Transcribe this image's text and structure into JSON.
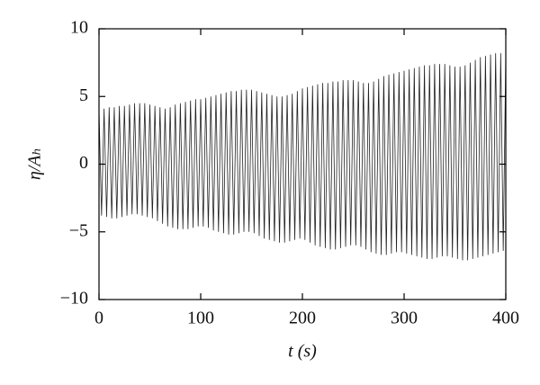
{
  "chart_data": {
    "type": "line",
    "xlabel": "t (s)",
    "ylabel": "η/Aₕ",
    "xlim": [
      0,
      400
    ],
    "xticks": [
      0,
      100,
      200,
      300,
      400
    ],
    "ylim": [
      -10,
      10
    ],
    "yticks": [
      {
        "value": -10,
        "label": "−10"
      },
      {
        "value": -5,
        "label": "−5"
      },
      0,
      5,
      10
    ],
    "x": [
      0,
      2.5,
      5,
      7.5,
      10,
      12.5,
      15,
      17.5,
      20,
      22.5,
      25,
      27.5,
      30,
      32.5,
      35,
      37.5,
      40,
      42.5,
      45,
      47.5,
      50,
      52.5,
      55,
      57.5,
      60,
      62.5,
      65,
      67.5,
      70,
      72.5,
      75,
      77.5,
      80,
      82.5,
      85,
      87.5,
      90,
      92.5,
      95,
      97.5,
      100,
      102.5,
      105,
      107.5,
      110,
      112.5,
      115,
      117.5,
      120,
      122.5,
      125,
      127.5,
      130,
      132.5,
      135,
      137.5,
      140,
      142.5,
      145,
      147.5,
      150,
      152.5,
      155,
      157.5,
      160,
      162.5,
      165,
      167.5,
      170,
      172.5,
      175,
      177.5,
      180,
      182.5,
      185,
      187.5,
      190,
      192.5,
      195,
      197.5,
      200,
      202.5,
      205,
      207.5,
      210,
      212.5,
      215,
      217.5,
      220,
      222.5,
      225,
      227.5,
      230,
      232.5,
      235,
      237.5,
      240,
      242.5,
      245,
      247.5,
      250,
      252.5,
      255,
      257.5,
      260,
      262.5,
      265,
      267.5,
      270,
      272.5,
      275,
      277.5,
      280,
      282.5,
      285,
      287.5,
      290,
      292.5,
      295,
      297.5,
      300,
      302.5,
      305,
      307.5,
      310,
      312.5,
      315,
      317.5,
      320,
      322.5,
      325,
      327.5,
      330,
      332.5,
      335,
      337.5,
      340,
      342.5,
      345,
      347.5,
      350,
      352.5,
      355,
      357.5,
      360,
      362.5,
      365,
      367.5,
      370,
      372.5,
      375,
      377.5,
      380,
      382.5,
      385,
      387.5,
      390,
      392.5,
      395,
      397.5,
      400
    ],
    "series": [
      {
        "color": "#222222",
        "values": [
          4.0,
          -3.8,
          4.1,
          -3.9,
          4.2,
          -4.0,
          4.2,
          -4.0,
          4.3,
          -3.9,
          4.3,
          -3.8,
          4.4,
          -3.7,
          4.5,
          -3.7,
          4.5,
          -3.8,
          4.5,
          -3.9,
          4.4,
          -4.0,
          4.3,
          -4.2,
          4.2,
          -4.4,
          4.1,
          -4.6,
          4.2,
          -4.7,
          4.4,
          -4.8,
          4.5,
          -4.8,
          4.6,
          -4.8,
          4.7,
          -4.7,
          4.8,
          -4.6,
          4.8,
          -4.6,
          4.9,
          -4.7,
          5.0,
          -4.9,
          5.1,
          -5.0,
          5.2,
          -5.1,
          5.3,
          -5.2,
          5.4,
          -5.2,
          5.4,
          -5.1,
          5.5,
          -5.0,
          5.5,
          -5.0,
          5.5,
          -5.1,
          5.4,
          -5.3,
          5.3,
          -5.5,
          5.2,
          -5.6,
          5.1,
          -5.7,
          5.0,
          -5.8,
          5.0,
          -5.8,
          5.1,
          -5.7,
          5.2,
          -5.6,
          5.4,
          -5.5,
          5.6,
          -5.6,
          5.7,
          -5.8,
          5.8,
          -6.0,
          5.9,
          -6.1,
          6.0,
          -6.2,
          6.0,
          -6.3,
          6.1,
          -6.3,
          6.1,
          -6.2,
          6.2,
          -6.1,
          6.2,
          -6.0,
          6.2,
          -6.0,
          6.1,
          -6.1,
          6.0,
          -6.3,
          6.0,
          -6.5,
          6.1,
          -6.6,
          6.3,
          -6.7,
          6.5,
          -6.7,
          6.6,
          -6.6,
          6.7,
          -6.5,
          6.8,
          -6.5,
          6.9,
          -6.6,
          7.0,
          -6.7,
          7.1,
          -6.8,
          7.2,
          -6.9,
          7.3,
          -7.0,
          7.3,
          -7.0,
          7.4,
          -6.9,
          7.4,
          -6.8,
          7.4,
          -6.8,
          7.3,
          -6.9,
          7.2,
          -7.0,
          7.2,
          -7.1,
          7.3,
          -7.1,
          7.5,
          -7.0,
          7.7,
          -6.9,
          7.9,
          -6.8,
          8.0,
          -6.7,
          8.1,
          -6.6,
          8.2,
          -6.5,
          8.2,
          -6.4,
          8.2
        ]
      }
    ]
  }
}
